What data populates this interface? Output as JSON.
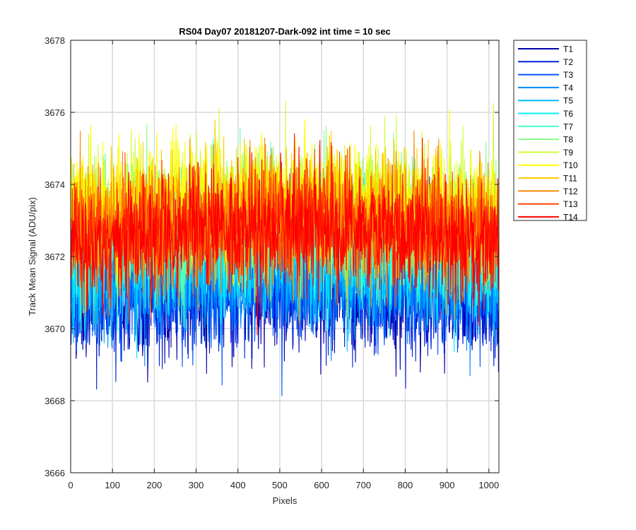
{
  "chart_data": {
    "type": "line",
    "title": "RS04 Day07 20181207-Dark-092 int time = 10 sec",
    "xlabel": "Pixels",
    "ylabel": "Track Mean Signal (ADU/pix)",
    "xlim": [
      0,
      1024
    ],
    "ylim": [
      3666,
      3678
    ],
    "xticks": [
      0,
      100,
      200,
      300,
      400,
      500,
      600,
      700,
      800,
      900,
      1000
    ],
    "yticks": [
      3666,
      3668,
      3670,
      3672,
      3674,
      3676,
      3678
    ],
    "grid": true,
    "legend_position": "outside-right-top",
    "noise_amplitude": 1.5,
    "series": [
      {
        "name": "T1",
        "color": "#0000aa",
        "mean": 3670.7
      },
      {
        "name": "T2",
        "color": "#0022dd",
        "mean": 3670.9
      },
      {
        "name": "T3",
        "color": "#0055ff",
        "mean": 3671.1
      },
      {
        "name": "T4",
        "color": "#0088ff",
        "mean": 3671.3
      },
      {
        "name": "T5",
        "color": "#00bbff",
        "mean": 3671.5
      },
      {
        "name": "T6",
        "color": "#00eeff",
        "mean": 3671.8
      },
      {
        "name": "T7",
        "color": "#44ffcc",
        "mean": 3672.3
      },
      {
        "name": "T8",
        "color": "#88ff88",
        "mean": 3672.8
      },
      {
        "name": "T9",
        "color": "#ccff33",
        "mean": 3673.2
      },
      {
        "name": "T10",
        "color": "#ffff00",
        "mean": 3673.3
      },
      {
        "name": "T11",
        "color": "#ffcc00",
        "mean": 3673.0
      },
      {
        "name": "T12",
        "color": "#ff8800",
        "mean": 3672.7
      },
      {
        "name": "T13",
        "color": "#ff4400",
        "mean": 3672.5
      },
      {
        "name": "T14",
        "color": "#ff0000",
        "mean": 3672.4
      }
    ]
  }
}
